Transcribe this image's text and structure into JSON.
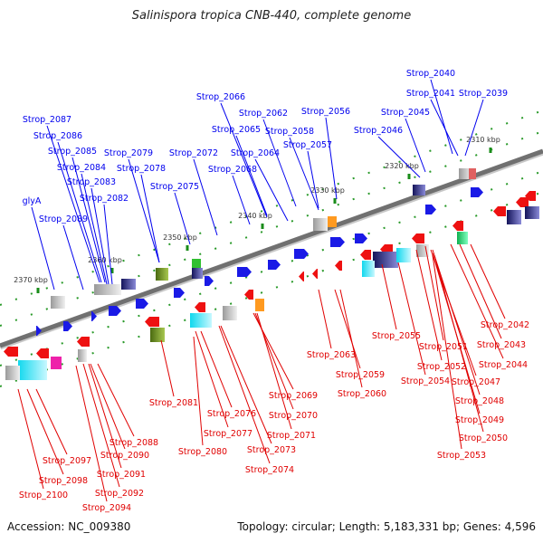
{
  "title": "Salinispora tropica CNB-440, complete genome",
  "footer": {
    "accession": "Accession: NC_009380",
    "topology": "Topology: circular; Length: 5,183,331 bp; Genes: 4,596"
  },
  "colors": {
    "forward_label": "#0000ee",
    "reverse_label": "#e00000",
    "forward_gene": "#1a1ae6",
    "reverse_gene": "#ee1111",
    "backbone": "#707070",
    "tick": "#1a8c1a"
  },
  "scale_labels": [
    "2310 kbp",
    "2320 kbp",
    "2330 kbp",
    "2340 kbp",
    "2350 kbp",
    "2360 kbp",
    "2370 kbp"
  ],
  "top_labels": [
    "Strop_2040",
    "Strop_2041",
    "Strop_2039",
    "Strop_2045",
    "Strop_2046",
    "Strop_2066",
    "Strop_2056",
    "Strop_2062",
    "Strop_2065",
    "Strop_2058",
    "Strop_2064",
    "Strop_2057",
    "Strop_2072",
    "Strop_2068",
    "Strop_2087",
    "Strop_2086",
    "Strop_2085",
    "Strop_2084",
    "Strop_2083",
    "Strop_2082",
    "Strop_2079",
    "Strop_2078",
    "Strop_2075",
    "glyA",
    "Strop_2089"
  ],
  "bottom_labels": [
    "Strop_2042",
    "Strop_2043",
    "Strop_2044",
    "Strop_2051",
    "Strop_2055",
    "Strop_2052",
    "Strop_2047",
    "Strop_2048",
    "Strop_2054",
    "Strop_2063",
    "Strop_2059",
    "Strop_2060",
    "Strop_2049",
    "Strop_2050",
    "Strop_2053",
    "Strop_2081",
    "Strop_2076",
    "Strop_2077",
    "Strop_2080",
    "Strop_2069",
    "Strop_2070",
    "Strop_2071",
    "Strop_2073",
    "Strop_2074",
    "Strop_2088",
    "Strop_2090",
    "Strop_2091",
    "Strop_2092",
    "Strop_2094",
    "Strop_2097",
    "Strop_2098",
    "Strop_2100"
  ]
}
